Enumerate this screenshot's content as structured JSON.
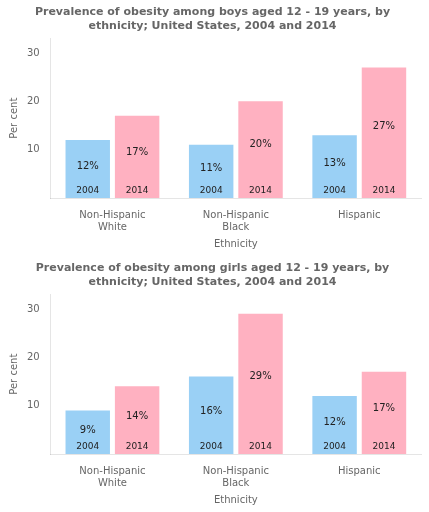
{
  "chart_data": [
    {
      "type": "bar",
      "title": "Prevalence of obesity among boys aged 12 - 19 years, by\nethnicity; United States, 2004 and 2014",
      "categories": [
        "Non-Hispanic\nWhite",
        "Non-Hispanic\nBlack",
        "Hispanic"
      ],
      "series": [
        {
          "name": "2004",
          "values": [
            12,
            11,
            13
          ],
          "value_labels": [
            "12%",
            "11%",
            "13%"
          ]
        },
        {
          "name": "2014",
          "values": [
            17,
            20,
            27
          ],
          "value_labels": [
            "17%",
            "20%",
            "27%"
          ]
        }
      ],
      "xlabel": "Ethnicity",
      "ylabel": "Per cent",
      "ylim": [
        0,
        33
      ],
      "yticks": [
        10,
        20,
        30
      ],
      "grid": false,
      "data_labels": true
    },
    {
      "type": "bar",
      "title": "Prevalence of obesity among girls aged 12 - 19 years, by\nethnicity; United States, 2004 and 2014",
      "categories": [
        "Non-Hispanic\nWhite",
        "Non-Hispanic\nBlack",
        "Hispanic"
      ],
      "series": [
        {
          "name": "2004",
          "values": [
            9,
            16,
            12
          ],
          "value_labels": [
            "9%",
            "16%",
            "12%"
          ]
        },
        {
          "name": "2014",
          "values": [
            14,
            29,
            17
          ],
          "value_labels": [
            "14%",
            "29%",
            "17%"
          ]
        }
      ],
      "xlabel": "Ethnicity",
      "ylabel": "Per cent",
      "ylim": [
        0,
        33
      ],
      "yticks": [
        10,
        20,
        30
      ],
      "grid": false,
      "data_labels": true
    }
  ]
}
